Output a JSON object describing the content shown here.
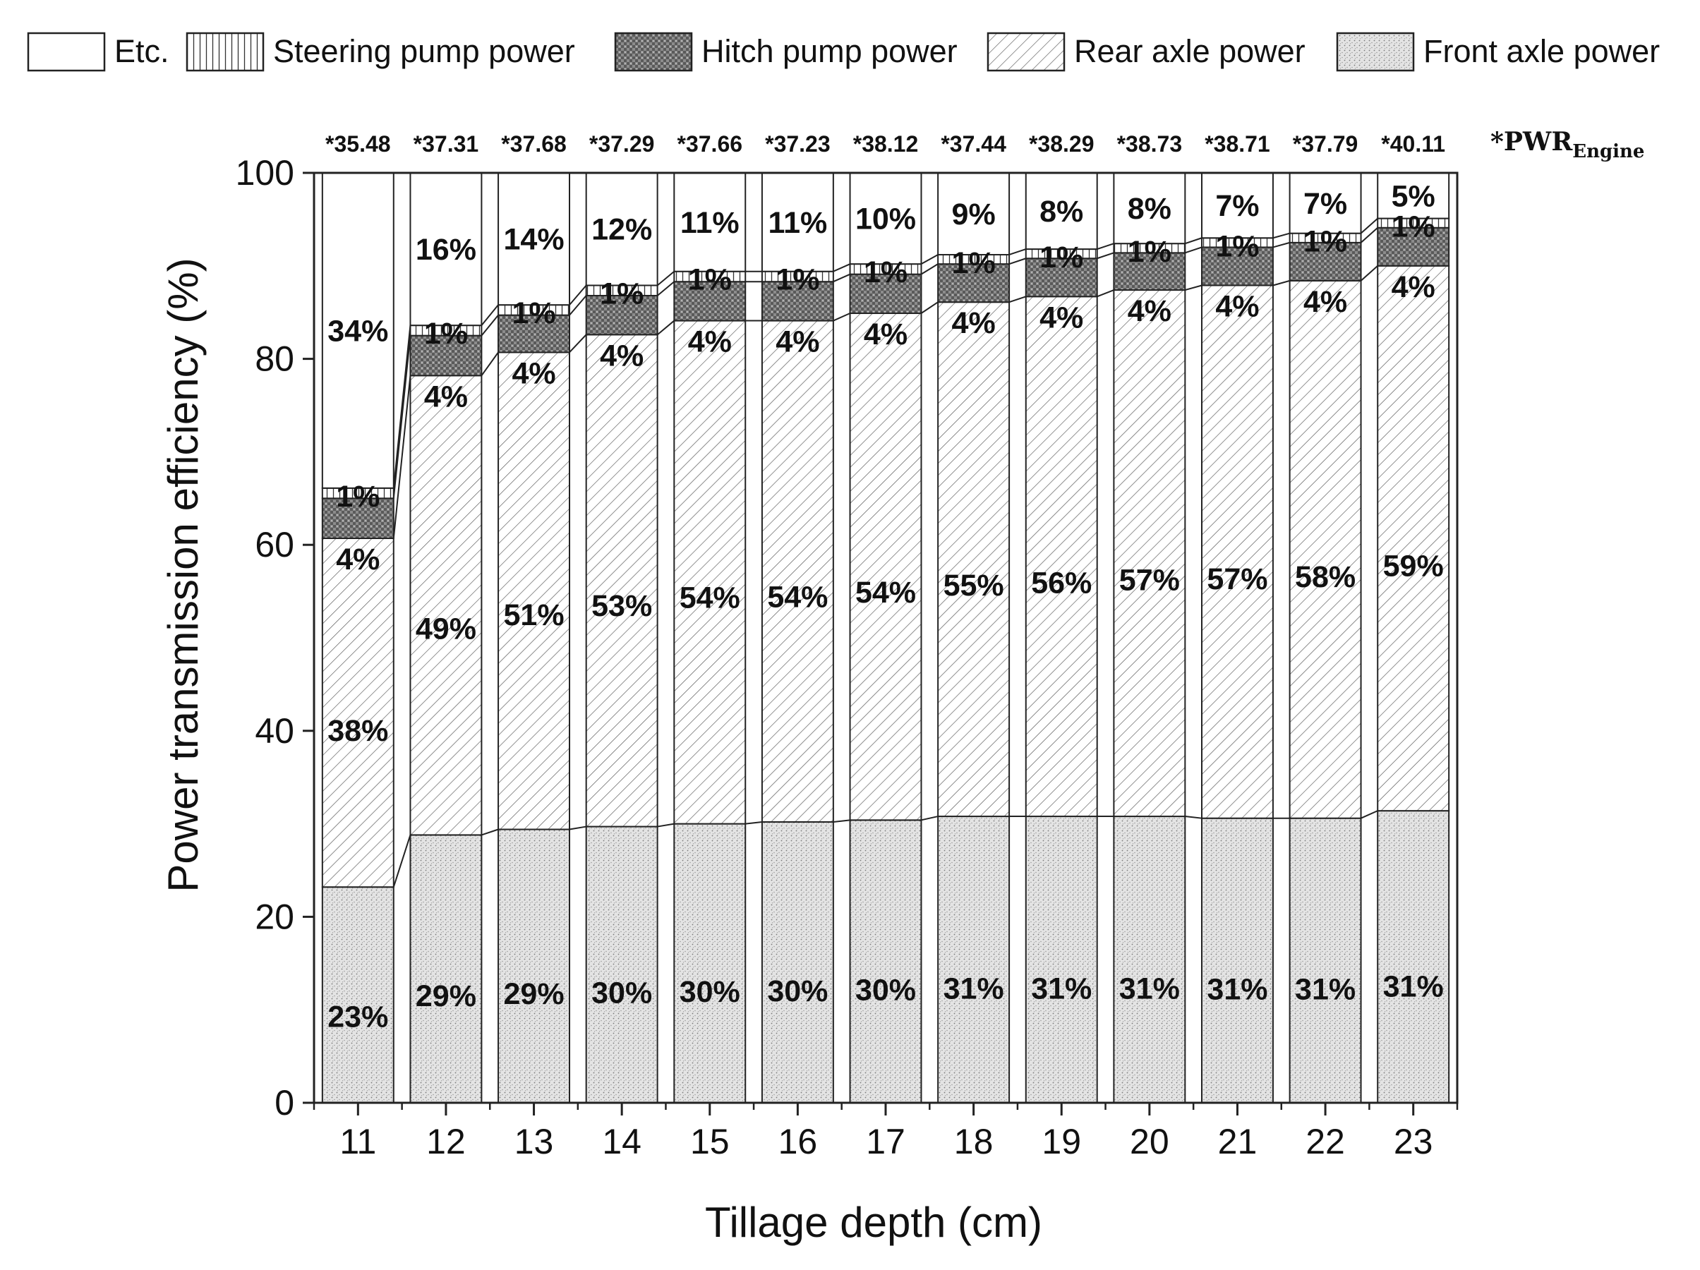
{
  "chart_data": {
    "type": "bar",
    "stacked": true,
    "xlabel": "Tillage depth (cm)",
    "ylabel": "Power transmission efficiency (%)",
    "ylim": [
      0,
      100
    ],
    "yticks": [
      "0",
      "20",
      "40",
      "60",
      "80",
      "100"
    ],
    "categories": [
      "11",
      "12",
      "13",
      "14",
      "15",
      "16",
      "17",
      "18",
      "19",
      "20",
      "21",
      "22",
      "23"
    ],
    "legend_position": "top",
    "pwr_key_text": "*PWR",
    "pwr_key_subscript": "Engine",
    "pwr_engine_labels": [
      "*35.48",
      "*37.31",
      "*37.68",
      "*37.29",
      "*37.66",
      "*37.23",
      "*38.12",
      "*37.44",
      "*38.29",
      "*38.73",
      "*38.71",
      "*37.79",
      "*40.11"
    ],
    "series": [
      {
        "name": "Front axle power",
        "values": [
          23.2,
          28.8,
          29.4,
          29.7,
          30.0,
          30.2,
          30.4,
          30.8,
          30.8,
          30.8,
          30.6,
          30.6,
          31.4
        ],
        "labels": [
          "23%",
          "29%",
          "29%",
          "30%",
          "30%",
          "30%",
          "30%",
          "31%",
          "31%",
          "31%",
          "31%",
          "31%",
          "31%"
        ]
      },
      {
        "name": "Rear axle power",
        "values": [
          37.5,
          49.4,
          51.3,
          52.9,
          54.1,
          53.9,
          54.5,
          55.3,
          55.9,
          56.6,
          57.3,
          57.8,
          58.6
        ],
        "labels": [
          "38%",
          "49%",
          "51%",
          "53%",
          "54%",
          "54%",
          "54%",
          "55%",
          "56%",
          "57%",
          "57%",
          "58%",
          "59%"
        ]
      },
      {
        "name": "Hitch pump power",
        "values": [
          4.3,
          4.3,
          4.0,
          4.2,
          4.2,
          4.2,
          4.2,
          4.1,
          4.1,
          4.0,
          4.1,
          4.1,
          4.1
        ],
        "labels": [
          "4%",
          "4%",
          "4%",
          "4%",
          "4%",
          "4%",
          "4%",
          "4%",
          "4%",
          "4%",
          "4%",
          "4%",
          "4%"
        ]
      },
      {
        "name": "Steering pump power",
        "values": [
          1.1,
          1.1,
          1.1,
          1.1,
          1.1,
          1.1,
          1.1,
          1.0,
          1.0,
          1.0,
          1.0,
          1.0,
          1.0
        ],
        "labels": [
          "1%",
          "1%",
          "1%",
          "1%",
          "1%",
          "1%",
          "1%",
          "1%",
          "1%",
          "1%",
          "1%",
          "1%",
          "1%"
        ]
      },
      {
        "name": "Etc.",
        "values": [
          33.9,
          16.4,
          14.2,
          12.1,
          10.6,
          10.6,
          9.8,
          8.8,
          8.2,
          7.6,
          7.0,
          6.5,
          4.9
        ],
        "labels": [
          "34%",
          "16%",
          "14%",
          "12%",
          "11%",
          "11%",
          "10%",
          "9%",
          "8%",
          "8%",
          "7%",
          "7%",
          "5%"
        ]
      }
    ],
    "legend_order": [
      "Etc.",
      "Steering pump power",
      "Hitch pump power",
      "Rear axle power",
      "Front axle power"
    ],
    "colors": {
      "outline": "#222222",
      "hitch_fill": "#8c8c8c",
      "front_fill": "#e4e4e4",
      "background": "#ffffff"
    }
  }
}
